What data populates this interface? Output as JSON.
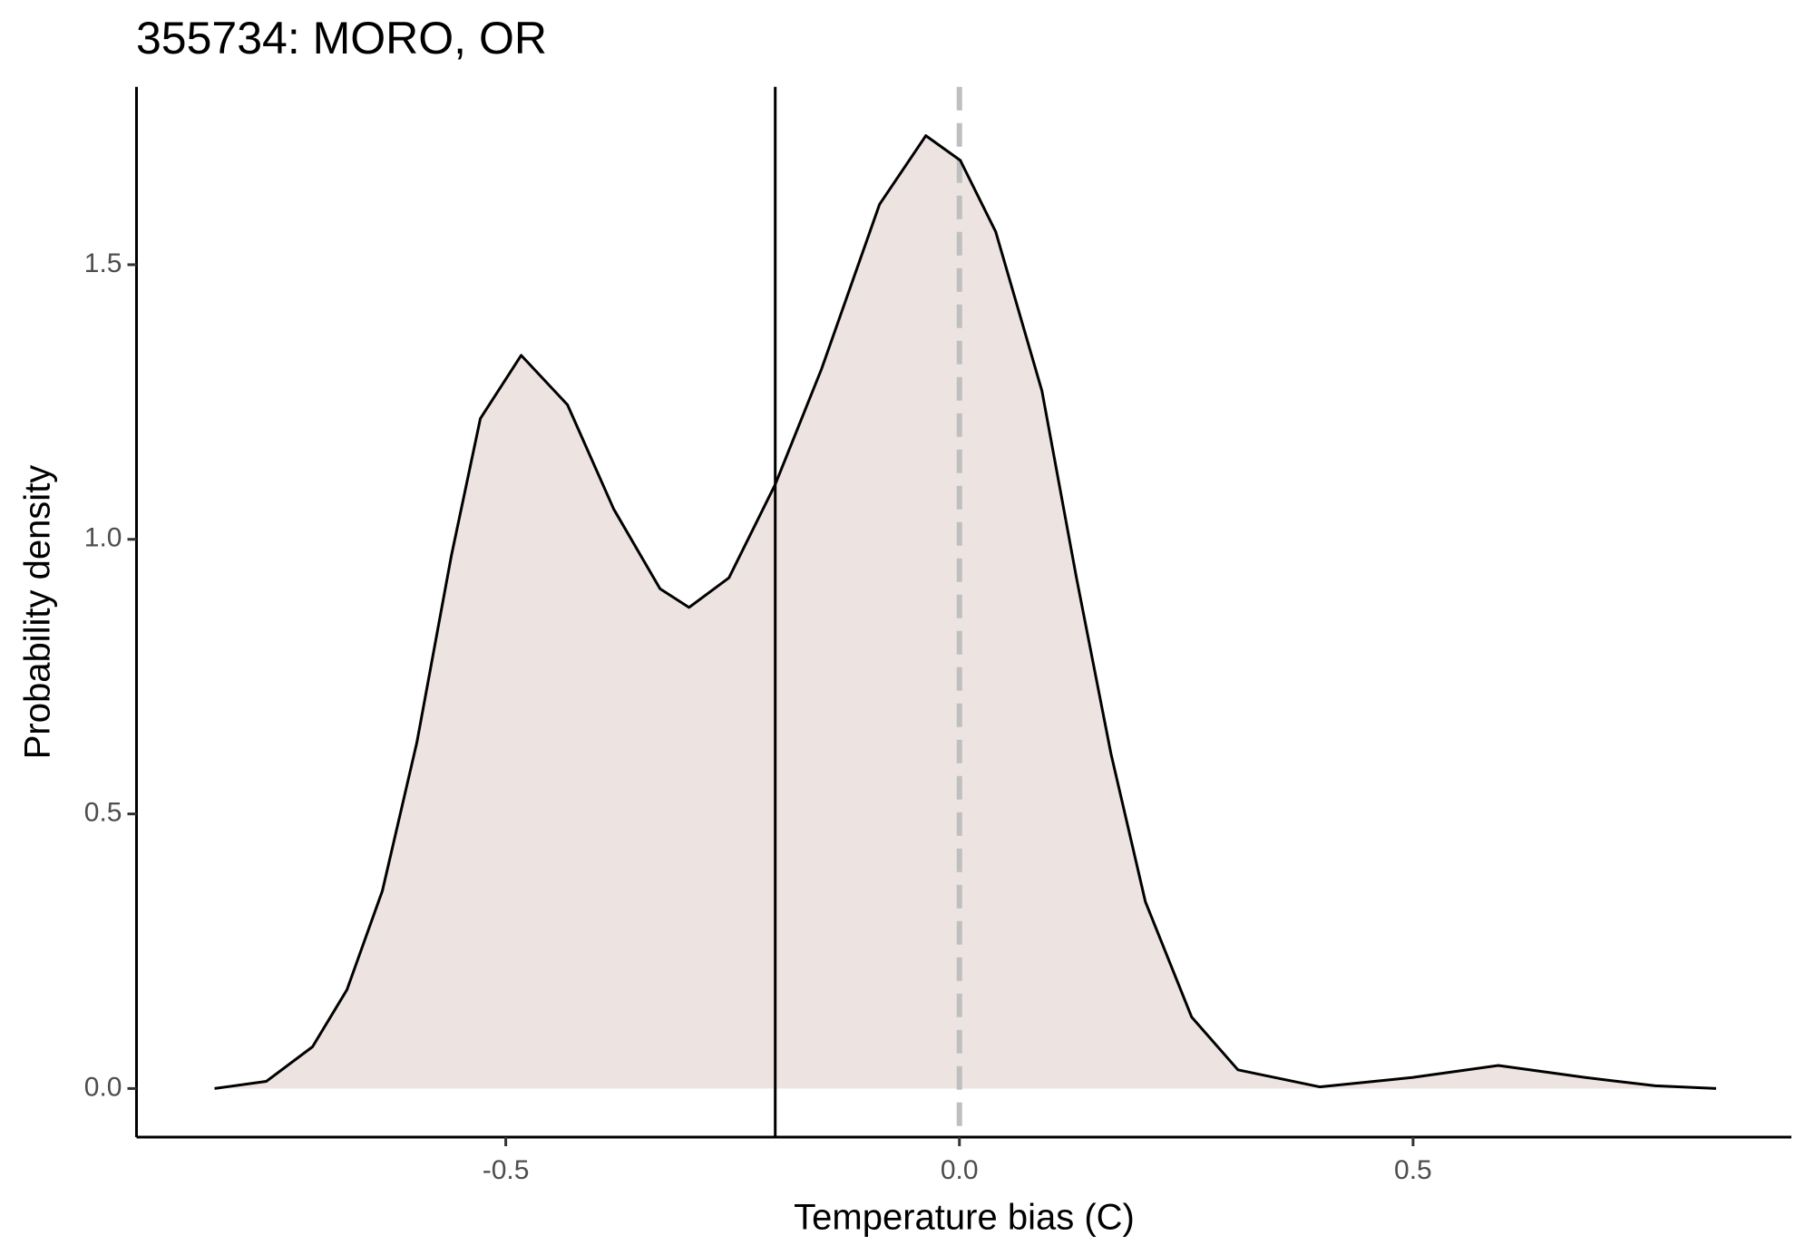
{
  "chart_data": {
    "type": "area",
    "title": "355734: MORO, OR",
    "xlabel": "Temperature bias (C)",
    "ylabel": "Probability density",
    "x": [
      -0.821,
      -0.764,
      -0.713,
      -0.675,
      -0.636,
      -0.598,
      -0.56,
      -0.528,
      -0.483,
      -0.432,
      -0.381,
      -0.33,
      -0.298,
      -0.254,
      -0.203,
      -0.152,
      -0.088,
      -0.037,
      0.001,
      0.04,
      0.091,
      0.129,
      0.167,
      0.205,
      0.256,
      0.307,
      0.397,
      0.499,
      0.594,
      0.69,
      0.767,
      0.834
    ],
    "values": [
      0.0,
      0.013,
      0.076,
      0.18,
      0.36,
      0.63,
      0.97,
      1.22,
      1.335,
      1.245,
      1.055,
      0.91,
      0.876,
      0.93,
      1.1,
      1.31,
      1.61,
      1.735,
      1.69,
      1.56,
      1.27,
      0.93,
      0.61,
      0.34,
      0.13,
      0.034,
      0.003,
      0.02,
      0.042,
      0.02,
      0.005,
      0.0
    ],
    "fill": "#ede4e2",
    "color": "#000000",
    "vlines": [
      {
        "x": -0.203,
        "style": "solid",
        "color": "#000000"
      },
      {
        "x": 0,
        "style": "dashed",
        "color": "#bfbfbf"
      }
    ],
    "xlim": [
      -0.907,
      0.917
    ],
    "ylim": [
      -0.0885,
      1.824
    ],
    "xticks": [
      -0.5,
      {
        "value": 0,
        "label": "0.0"
      },
      0.5
    ],
    "yticks": [
      {
        "value": 0,
        "label": "0.0"
      },
      0.5,
      {
        "value": 1,
        "label": "1.0"
      },
      1.5
    ],
    "grid": false
  }
}
